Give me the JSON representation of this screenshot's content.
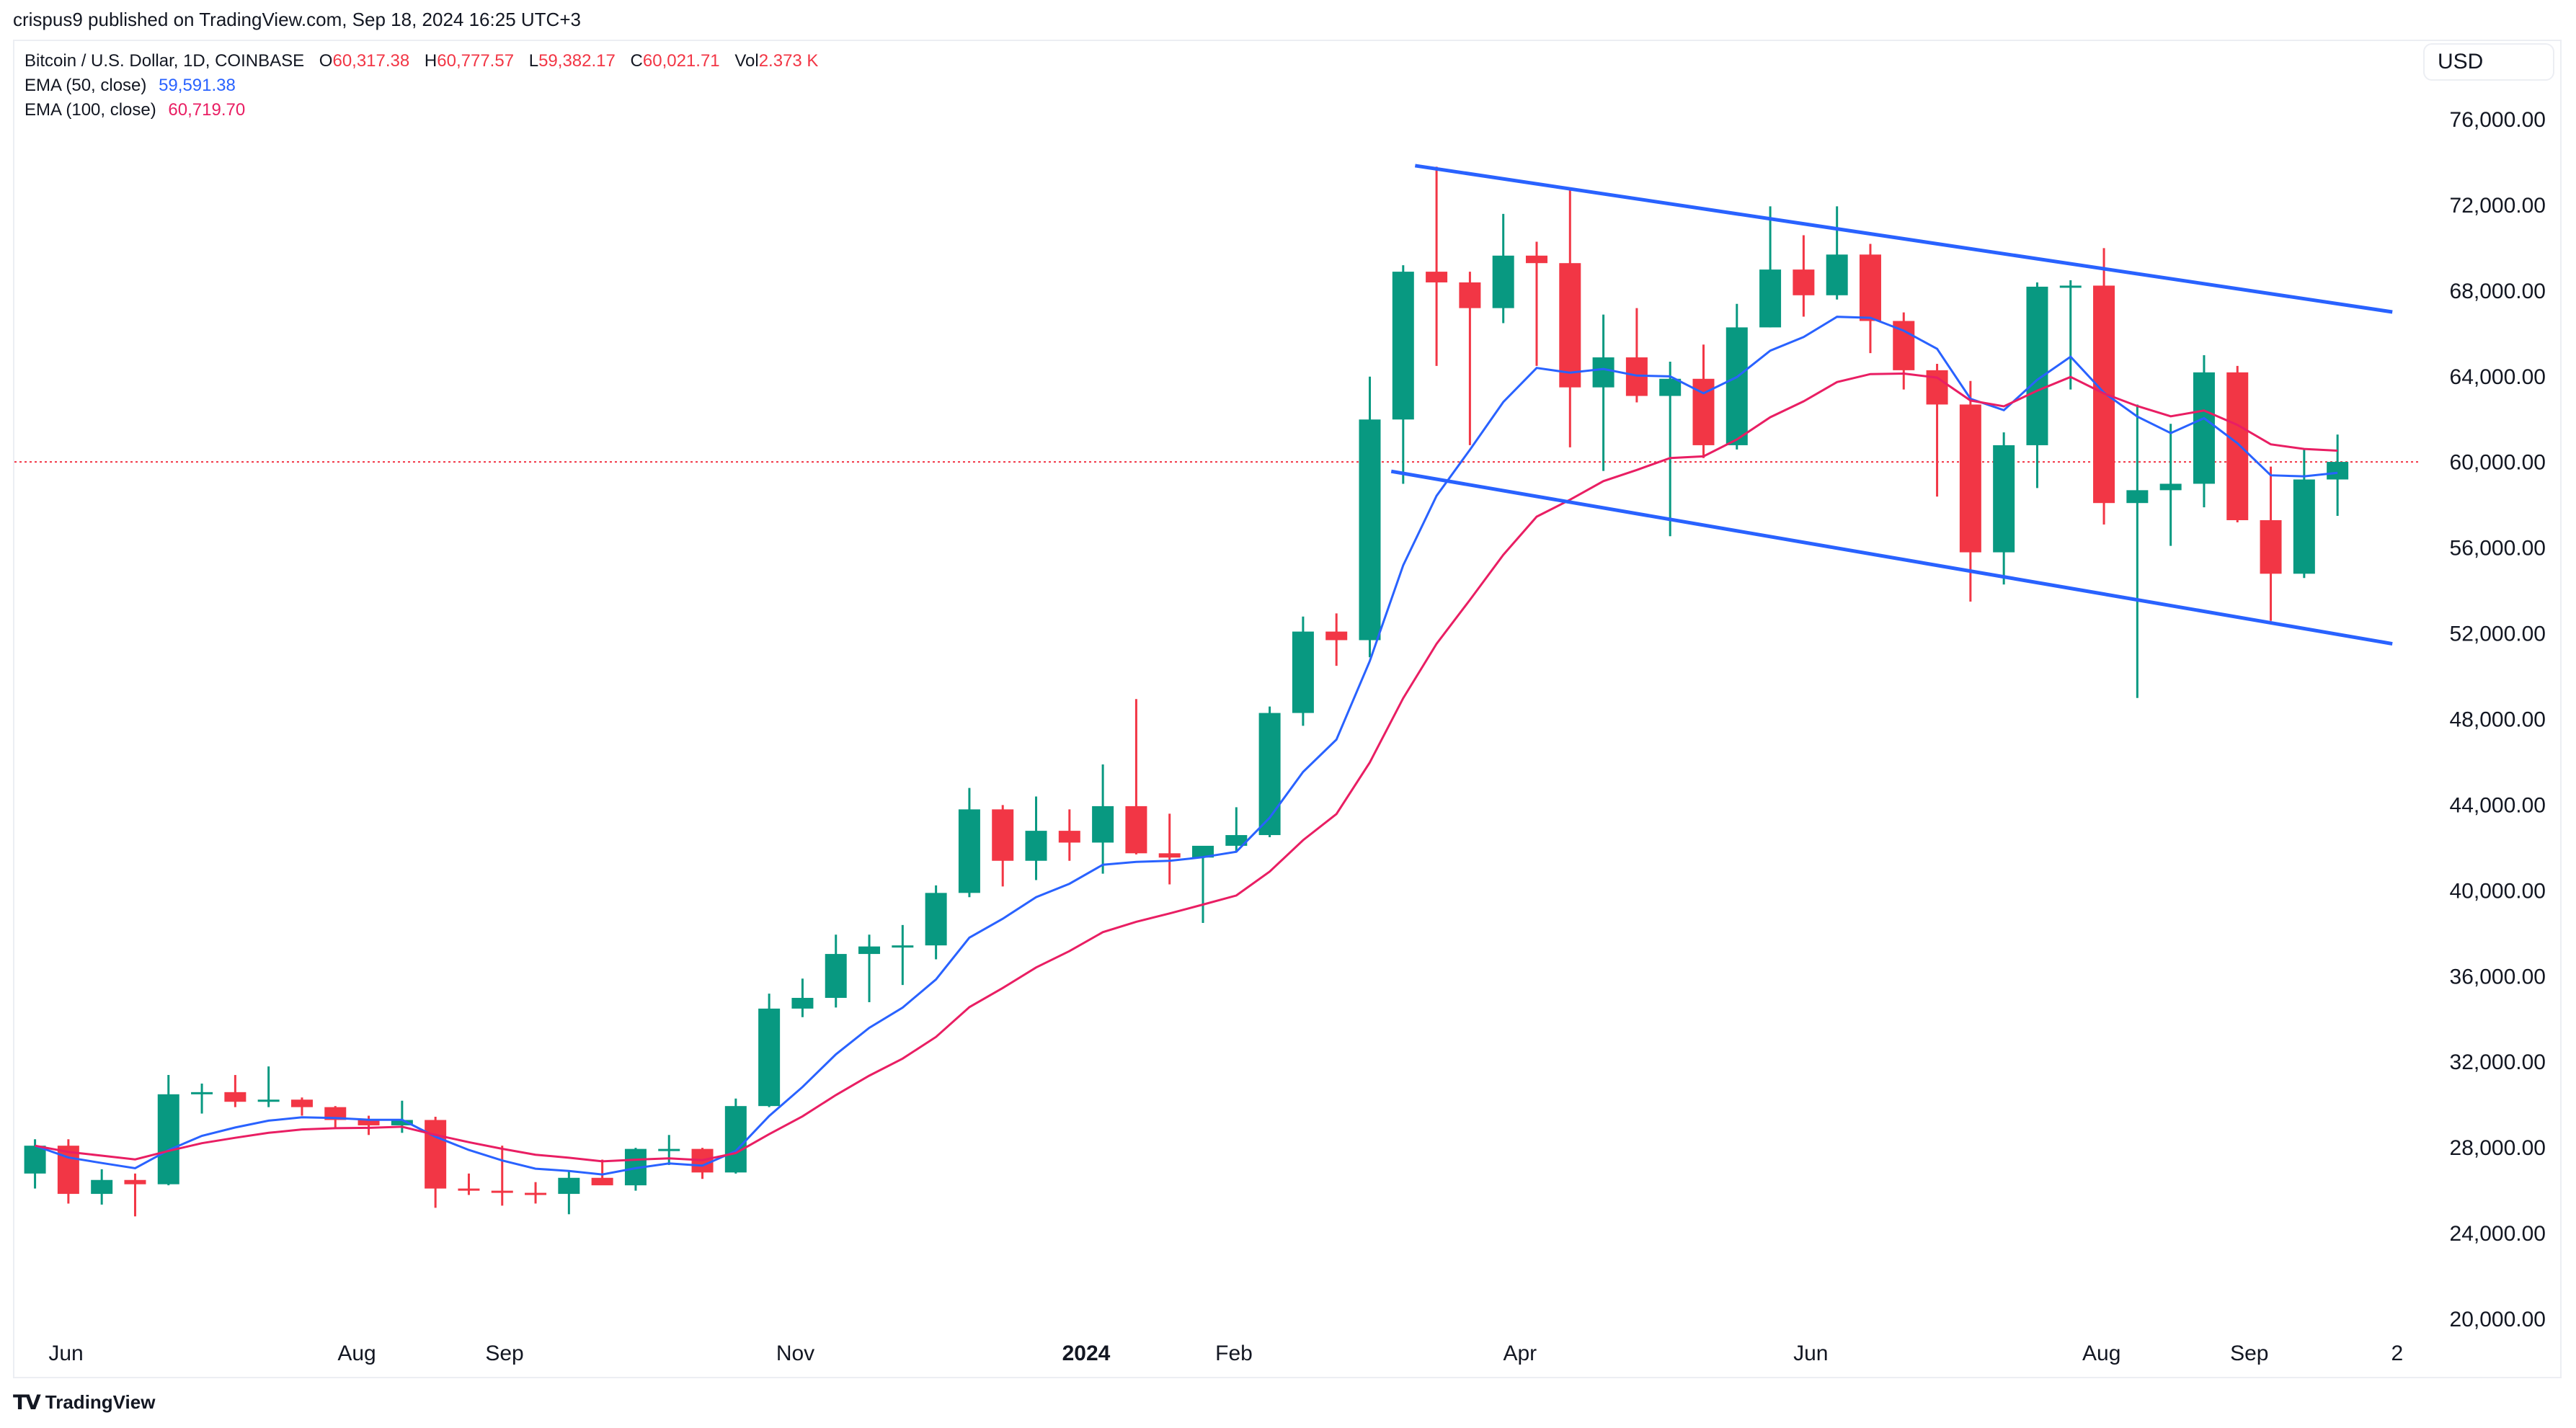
{
  "published": "crispus9 published on TradingView.com, Sep 18, 2024 16:25 UTC+3",
  "legend": {
    "symbol": "Bitcoin / U.S. Dollar, 1D, COINBASE",
    "open_label": "O",
    "open": "60,317.38",
    "high_label": "H",
    "high": "60,777.57",
    "low_label": "L",
    "low": "59,382.17",
    "close_label": "C",
    "close": "60,021.71",
    "vol_label": "Vol",
    "vol": "2.373 K",
    "ema50_label": "EMA (50, close)",
    "ema50": "59,591.38",
    "ema100_label": "EMA (100, close)",
    "ema100": "60,719.70"
  },
  "currency": "USD",
  "footer_brand": "TradingView",
  "colors": {
    "up": "#089981",
    "down": "#F23645",
    "ema50": "#2962FF",
    "ema100": "#E91E63",
    "channel": "#2962FF",
    "price_line": "#F23645"
  },
  "chart_data": {
    "type": "candlestick",
    "title": "Bitcoin / U.S. Dollar, 1D, COINBASE",
    "ylim": [
      20000,
      78000
    ],
    "xlim": [
      "2023-05-21",
      "2024-10-10"
    ],
    "grid": false,
    "y_ticks": [
      "76,000.00",
      "72,000.00",
      "68,000.00",
      "64,000.00",
      "60,000.00",
      "56,000.00",
      "52,000.00",
      "48,000.00",
      "44,000.00",
      "40,000.00",
      "36,000.00",
      "32,000.00",
      "28,000.00",
      "24,000.00",
      "20,000.00"
    ],
    "y_tick_values": [
      76000,
      72000,
      68000,
      64000,
      60000,
      56000,
      52000,
      48000,
      44000,
      40000,
      36000,
      32000,
      28000,
      24000,
      20000
    ],
    "x_ticks": [
      {
        "label": "Jun",
        "date": "2023-06-01",
        "bold": false
      },
      {
        "label": "Aug",
        "date": "2023-08-01",
        "bold": false
      },
      {
        "label": "Sep",
        "date": "2023-09-01",
        "bold": false
      },
      {
        "label": "Nov",
        "date": "2023-11-01",
        "bold": false
      },
      {
        "label": "2024",
        "date": "2024-01-01",
        "bold": true
      },
      {
        "label": "Feb",
        "date": "2024-02-01",
        "bold": false
      },
      {
        "label": "Apr",
        "date": "2024-04-01",
        "bold": false
      },
      {
        "label": "Jun",
        "date": "2024-06-01",
        "bold": false
      },
      {
        "label": "Aug",
        "date": "2024-08-01",
        "bold": false
      },
      {
        "label": "Sep",
        "date": "2024-09-01",
        "bold": false
      },
      {
        "label": "2",
        "date": "2024-10-02",
        "bold": false
      }
    ],
    "current_price": 60021.71,
    "ohlc": [
      [
        "2023-05-22",
        26800,
        28400,
        26100,
        28100
      ],
      [
        "2023-05-29",
        28100,
        28400,
        25400,
        25850
      ],
      [
        "2023-06-05",
        25850,
        27000,
        25350,
        26500
      ],
      [
        "2023-06-12",
        26500,
        26800,
        24800,
        26300
      ],
      [
        "2023-06-19",
        26300,
        31400,
        26250,
        30500
      ],
      [
        "2023-06-26",
        30500,
        31000,
        29600,
        30600
      ],
      [
        "2023-07-03",
        30600,
        31400,
        29900,
        30150
      ],
      [
        "2023-07-10",
        30150,
        31800,
        29900,
        30250
      ],
      [
        "2023-07-17",
        30250,
        30350,
        29500,
        29900
      ],
      [
        "2023-07-24",
        29900,
        29950,
        28900,
        29300
      ],
      [
        "2023-07-31",
        29300,
        29500,
        28600,
        29050
      ],
      [
        "2023-08-07",
        29050,
        30200,
        28700,
        29300
      ],
      [
        "2023-08-14",
        29300,
        29450,
        25200,
        26100
      ],
      [
        "2023-08-21",
        26100,
        26800,
        25800,
        26000
      ],
      [
        "2023-08-28",
        26000,
        28100,
        25300,
        25900
      ],
      [
        "2023-09-04",
        25900,
        26400,
        25400,
        25850
      ],
      [
        "2023-09-11",
        25850,
        26900,
        24900,
        26600
      ],
      [
        "2023-09-18",
        26600,
        27450,
        26300,
        26250
      ],
      [
        "2023-09-25",
        26250,
        28000,
        26000,
        27950
      ],
      [
        "2023-10-02",
        27950,
        28600,
        27200,
        27950
      ],
      [
        "2023-10-09",
        27950,
        28000,
        26550,
        26850
      ],
      [
        "2023-10-16",
        26850,
        30300,
        26800,
        29950
      ],
      [
        "2023-10-23",
        29950,
        35200,
        29900,
        34500
      ],
      [
        "2023-10-30",
        34500,
        35900,
        34100,
        35000
      ],
      [
        "2023-11-06",
        35000,
        37950,
        34550,
        37050
      ],
      [
        "2023-11-13",
        37050,
        37950,
        34800,
        37400
      ],
      [
        "2023-11-20",
        37400,
        38400,
        35600,
        37450
      ],
      [
        "2023-11-27",
        37450,
        40250,
        36800,
        39900
      ],
      [
        "2023-12-04",
        39900,
        44800,
        39700,
        43800
      ],
      [
        "2023-12-11",
        43800,
        44000,
        40200,
        41400
      ],
      [
        "2023-12-18",
        41400,
        44400,
        40500,
        42800
      ],
      [
        "2023-12-25",
        42800,
        43800,
        41400,
        42250
      ],
      [
        "2024-01-01",
        42250,
        45900,
        40800,
        43950
      ],
      [
        "2024-01-08",
        43950,
        48950,
        41700,
        41750
      ],
      [
        "2024-01-15",
        41750,
        43600,
        40300,
        41550
      ],
      [
        "2024-01-22",
        41550,
        42000,
        38500,
        42100
      ],
      [
        "2024-01-29",
        42100,
        43900,
        41800,
        42600
      ],
      [
        "2024-02-05",
        42600,
        48600,
        42500,
        48300
      ],
      [
        "2024-02-12",
        48300,
        52800,
        47700,
        52100
      ],
      [
        "2024-02-19",
        52100,
        52950,
        50500,
        51700
      ],
      [
        "2024-02-26",
        51700,
        64000,
        50900,
        62000
      ],
      [
        "2024-03-04",
        62000,
        69200,
        59000,
        68900
      ],
      [
        "2024-03-11",
        68900,
        73800,
        64500,
        68400
      ],
      [
        "2024-03-18",
        68400,
        68900,
        60800,
        67200
      ],
      [
        "2024-03-25",
        67200,
        71600,
        66500,
        69650
      ],
      [
        "2024-04-01",
        69650,
        70300,
        64500,
        69300
      ],
      [
        "2024-04-08",
        69300,
        72800,
        60700,
        63500
      ],
      [
        "2024-04-15",
        63500,
        66900,
        59600,
        64900
      ],
      [
        "2024-04-22",
        64900,
        67200,
        62800,
        63100
      ],
      [
        "2024-04-29",
        63100,
        64700,
        56550,
        63900
      ],
      [
        "2024-05-06",
        63900,
        65500,
        60200,
        60800
      ],
      [
        "2024-05-13",
        60800,
        67400,
        60600,
        66300
      ],
      [
        "2024-05-20",
        66300,
        71950,
        66300,
        69000
      ],
      [
        "2024-05-27",
        69000,
        70600,
        66800,
        67800
      ],
      [
        "2024-06-03",
        67800,
        71950,
        67600,
        69700
      ],
      [
        "2024-06-10",
        69700,
        70200,
        65100,
        66600
      ],
      [
        "2024-06-17",
        66600,
        67000,
        63400,
        64300
      ],
      [
        "2024-06-24",
        64300,
        64600,
        58400,
        62700
      ],
      [
        "2024-07-01",
        62700,
        63800,
        53500,
        55800
      ],
      [
        "2024-07-08",
        55800,
        61400,
        54300,
        60800
      ],
      [
        "2024-07-15",
        60800,
        68400,
        58800,
        68200
      ],
      [
        "2024-07-22",
        68200,
        68500,
        63400,
        68250
      ],
      [
        "2024-07-29",
        68250,
        70000,
        57100,
        58100
      ],
      [
        "2024-08-05",
        58100,
        62700,
        49000,
        58700
      ],
      [
        "2024-08-12",
        58700,
        61800,
        56100,
        59000
      ],
      [
        "2024-08-19",
        59000,
        65000,
        57900,
        64200
      ],
      [
        "2024-08-26",
        64200,
        64500,
        57200,
        57300
      ],
      [
        "2024-09-02",
        57300,
        59800,
        52600,
        54800
      ],
      [
        "2024-09-09",
        54800,
        60600,
        54600,
        59200
      ],
      [
        "2024-09-16",
        59200,
        61300,
        57500,
        60021.71
      ]
    ],
    "channel": {
      "upper": [
        [
          "2024-03-10",
          73850
        ],
        [
          "2024-10-01",
          67020
        ]
      ],
      "lower": [
        [
          "2024-03-05",
          59580
        ],
        [
          "2024-10-01",
          51530
        ]
      ]
    }
  }
}
